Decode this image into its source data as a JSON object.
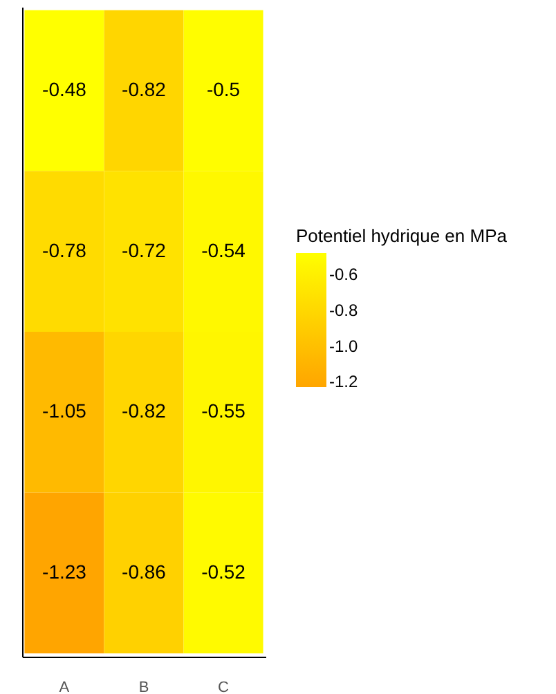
{
  "chart_data": {
    "type": "heatmap",
    "legend_title": "Potentiel hydrique en MPa",
    "categories": [
      "A",
      "B",
      "C"
    ],
    "y_categories": [
      null,
      null,
      null,
      null
    ],
    "cells": [
      [
        -0.48,
        -0.82,
        -0.5
      ],
      [
        -0.78,
        -0.72,
        -0.54
      ],
      [
        -1.05,
        -0.82,
        -0.55
      ],
      [
        -1.23,
        -0.86,
        -0.52
      ]
    ],
    "clim": [
      -1.23,
      -0.48
    ],
    "cticks": [
      -0.6,
      -0.8,
      {
        "value": -1.0,
        "label": "-1.0"
      },
      -1.2
    ],
    "tick_labels": "x",
    "data_labels": true
  }
}
